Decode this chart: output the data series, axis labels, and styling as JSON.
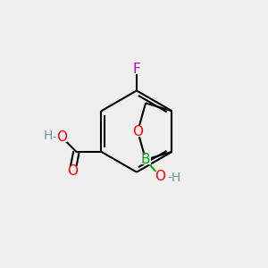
{
  "background_color": "#efefef",
  "bond_color": "#000000",
  "atom_colors": {
    "F": "#cc00cc",
    "O": "#ff0000",
    "B": "#00aa00",
    "H_gray": "#6a9a9a",
    "C": "#000000"
  },
  "font_size_atom": 11,
  "font_size_h": 10,
  "figsize": [
    3.0,
    3.0
  ],
  "dpi": 100,
  "xlim": [
    0,
    10
  ],
  "ylim": [
    0,
    10
  ]
}
